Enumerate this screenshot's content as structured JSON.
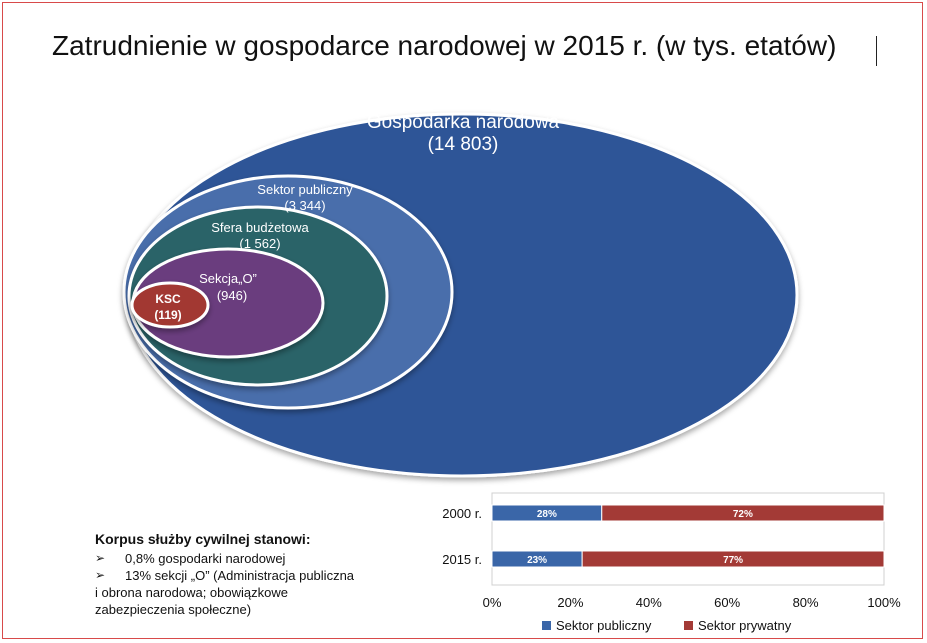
{
  "title": "Zatrudnienie w gospodarce narodowej w 2015 r. (w tys. etatów)",
  "euler": [
    {
      "label": "Gospodarka narodowa",
      "value": "(14 803)",
      "color": "#2f5597"
    },
    {
      "label": "Sektor publiczny",
      "value": "(3 344)",
      "color": "#4a6eab"
    },
    {
      "label": "Sfera budżetowa",
      "value": "(1 562)",
      "color": "#2a6468"
    },
    {
      "label": "Sekcja„O”",
      "value": "(946)",
      "color": "#6b3e7e"
    },
    {
      "label": "KSC",
      "value": "(119)",
      "color": "#a23730"
    }
  ],
  "notes": {
    "heading": "Korpus służby cywilnej stanowi:",
    "items": [
      {
        "bullet": "➢",
        "text": "0,8% gospodarki narodowej"
      },
      {
        "bullet": "➢",
        "text": "13% sekcji „O” (Administracja publiczna"
      }
    ],
    "continuation": [
      "i obrona narodowa; obowiązkowe",
      "zabezpieczenia społeczne)"
    ]
  },
  "chart_data": {
    "type": "bar",
    "orientation": "horizontal",
    "stacked": true,
    "categories": [
      "2000 r.",
      "2015 r."
    ],
    "series": [
      {
        "name": "Sektor publiczny",
        "values": [
          28,
          23
        ],
        "labels": [
          "28%",
          "23%"
        ],
        "color": "#3a66a8"
      },
      {
        "name": "Sektor prywatny",
        "values": [
          72,
          77
        ],
        "labels": [
          "72%",
          "77%"
        ],
        "color": "#a33a36"
      }
    ],
    "xlim": [
      0,
      100
    ],
    "xticks": [
      "0%",
      "20%",
      "40%",
      "60%",
      "80%",
      "100%"
    ],
    "legend_position": "bottom"
  }
}
